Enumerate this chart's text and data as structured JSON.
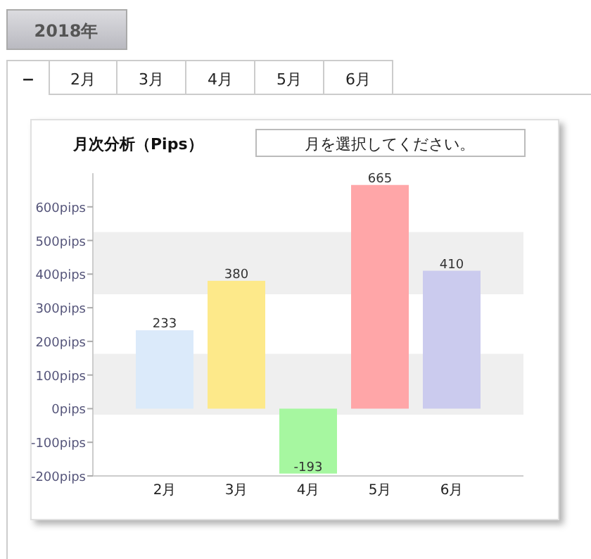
{
  "chart_data": {
    "type": "bar",
    "title": "月次分析（Pips）",
    "categories": [
      "2月",
      "3月",
      "4月",
      "5月",
      "6月"
    ],
    "values": [
      233,
      380,
      -193,
      665,
      410
    ],
    "colors": [
      "#dbeafa",
      "#fde98a",
      "#a6f7a0",
      "#ffa6a8",
      "#cbcbee"
    ],
    "data_labels": true,
    "ylim": [
      -200,
      700
    ],
    "yticks": [
      {
        "value": -200,
        "label": "-200pips"
      },
      {
        "value": -100,
        "label": "-100pips"
      },
      {
        "value": 0,
        "label": "0pips"
      },
      {
        "value": 100,
        "label": "100pips"
      },
      {
        "value": 200,
        "label": "200pips"
      },
      {
        "value": 300,
        "label": "300pips"
      },
      {
        "value": 400,
        "label": "400pips"
      },
      {
        "value": 500,
        "label": "500pips"
      },
      {
        "value": 600,
        "label": "600pips"
      }
    ],
    "bands": [
      {
        "axis": "y",
        "from": -18,
        "to": 163,
        "color": "#efefef"
      },
      {
        "axis": "y",
        "from": 340,
        "to": 525,
        "color": "#efefef"
      }
    ],
    "annotations": [
      "2018年",
      "−",
      "2月",
      "3月",
      "4月",
      "5月",
      "6月",
      "月を選択してください。"
    ]
  }
}
